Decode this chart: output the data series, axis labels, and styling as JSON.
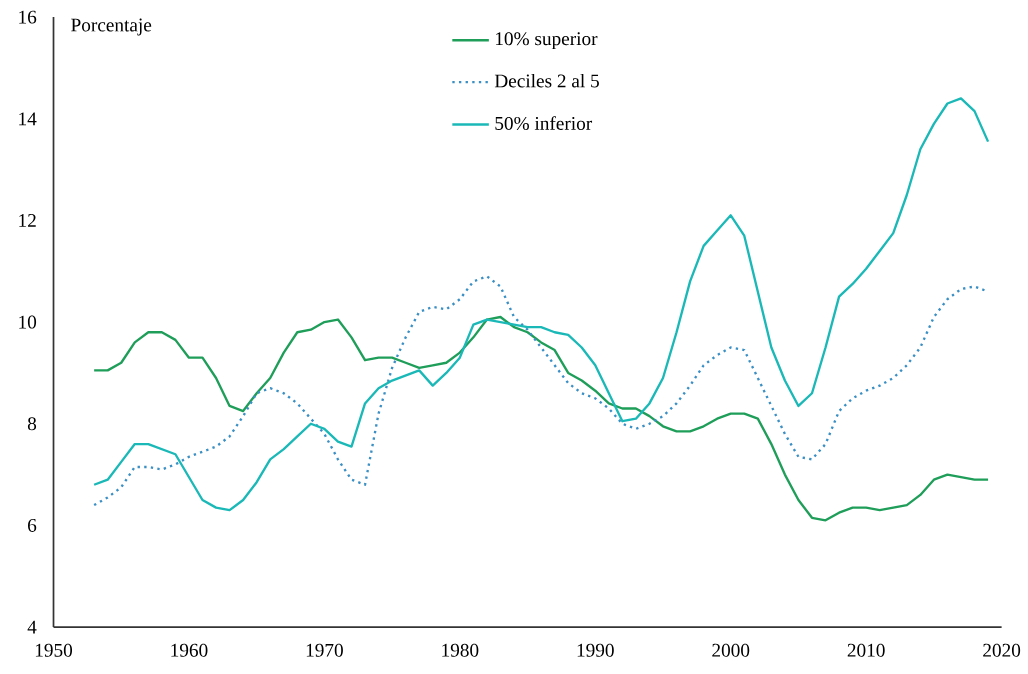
{
  "chart_data": {
    "type": "line",
    "ylabel": "Porcentaje",
    "x": [
      1953,
      1954,
      1955,
      1956,
      1957,
      1958,
      1959,
      1960,
      1961,
      1962,
      1963,
      1964,
      1965,
      1966,
      1967,
      1968,
      1969,
      1970,
      1971,
      1972,
      1973,
      1974,
      1975,
      1976,
      1977,
      1978,
      1979,
      1980,
      1981,
      1982,
      1983,
      1984,
      1985,
      1986,
      1987,
      1988,
      1989,
      1990,
      1991,
      1992,
      1993,
      1994,
      1995,
      1996,
      1997,
      1998,
      1999,
      2000,
      2001,
      2002,
      2003,
      2004,
      2005,
      2006,
      2007,
      2008,
      2009,
      2010,
      2011,
      2012,
      2013,
      2014,
      2015,
      2016,
      2017,
      2018,
      2019
    ],
    "series": [
      {
        "name": "10% superior",
        "color": "#1f9e5a",
        "line_style": "solid",
        "values": [
          9.05,
          9.05,
          9.2,
          9.6,
          9.8,
          9.8,
          9.65,
          9.3,
          9.3,
          8.9,
          8.35,
          8.25,
          8.6,
          8.9,
          9.4,
          9.8,
          9.85,
          10.0,
          10.05,
          9.7,
          9.25,
          9.3,
          9.3,
          9.2,
          9.1,
          9.15,
          9.2,
          9.4,
          9.7,
          10.05,
          10.1,
          9.9,
          9.8,
          9.6,
          9.45,
          9.0,
          8.85,
          8.65,
          8.4,
          8.3,
          8.3,
          8.15,
          7.95,
          7.85,
          7.85,
          7.95,
          8.1,
          8.2,
          8.2,
          8.1,
          7.6,
          7.0,
          6.5,
          6.15,
          6.1,
          6.25,
          6.35,
          6.35,
          6.3,
          6.35,
          6.4,
          6.6,
          6.9,
          7.0,
          6.95,
          6.9,
          6.9
        ]
      },
      {
        "name": "Deciles 2 al 5",
        "color": "#3a8fc4",
        "line_style": "dotted",
        "values": [
          6.4,
          6.55,
          6.75,
          7.15,
          7.15,
          7.1,
          7.2,
          7.35,
          7.45,
          7.55,
          7.75,
          8.15,
          8.6,
          8.7,
          8.6,
          8.4,
          8.1,
          7.8,
          7.3,
          6.9,
          6.8,
          8.2,
          9.1,
          9.7,
          10.2,
          10.3,
          10.25,
          10.45,
          10.8,
          10.9,
          10.7,
          10.1,
          9.85,
          9.5,
          9.15,
          8.8,
          8.6,
          8.5,
          8.3,
          8.0,
          7.9,
          8.0,
          8.15,
          8.4,
          8.75,
          9.15,
          9.35,
          9.5,
          9.45,
          8.9,
          8.35,
          7.8,
          7.35,
          7.3,
          7.6,
          8.25,
          8.5,
          8.65,
          8.75,
          8.9,
          9.15,
          9.5,
          10.1,
          10.45,
          10.65,
          10.7,
          10.6
        ]
      },
      {
        "name": "50% inferior",
        "color": "#1bb8b8",
        "line_style": "solid",
        "values": [
          6.8,
          6.9,
          7.25,
          7.6,
          7.6,
          7.5,
          7.4,
          6.95,
          6.5,
          6.35,
          6.3,
          6.5,
          6.85,
          7.3,
          7.5,
          7.75,
          8.0,
          7.9,
          7.65,
          7.55,
          8.4,
          8.7,
          8.85,
          8.95,
          9.05,
          8.75,
          9.0,
          9.3,
          9.95,
          10.05,
          10.0,
          9.95,
          9.9,
          9.9,
          9.8,
          9.75,
          9.5,
          9.15,
          8.6,
          8.05,
          8.1,
          8.4,
          8.9,
          9.8,
          10.8,
          11.5,
          11.8,
          12.1,
          11.7,
          10.6,
          9.5,
          8.85,
          8.35,
          8.6,
          9.5,
          10.5,
          10.75,
          11.05,
          11.4,
          11.75,
          12.5,
          13.4,
          13.9,
          14.3,
          14.4,
          14.15,
          13.55
        ]
      }
    ],
    "xlim": [
      1950,
      2020
    ],
    "ylim": [
      4,
      16
    ],
    "xticks": [
      1950,
      1960,
      1970,
      1980,
      1990,
      2000,
      2010,
      2020
    ],
    "yticks": [
      4,
      6,
      8,
      10,
      12,
      14,
      16
    ],
    "grid": false,
    "legend": "top",
    "marker": "none"
  }
}
